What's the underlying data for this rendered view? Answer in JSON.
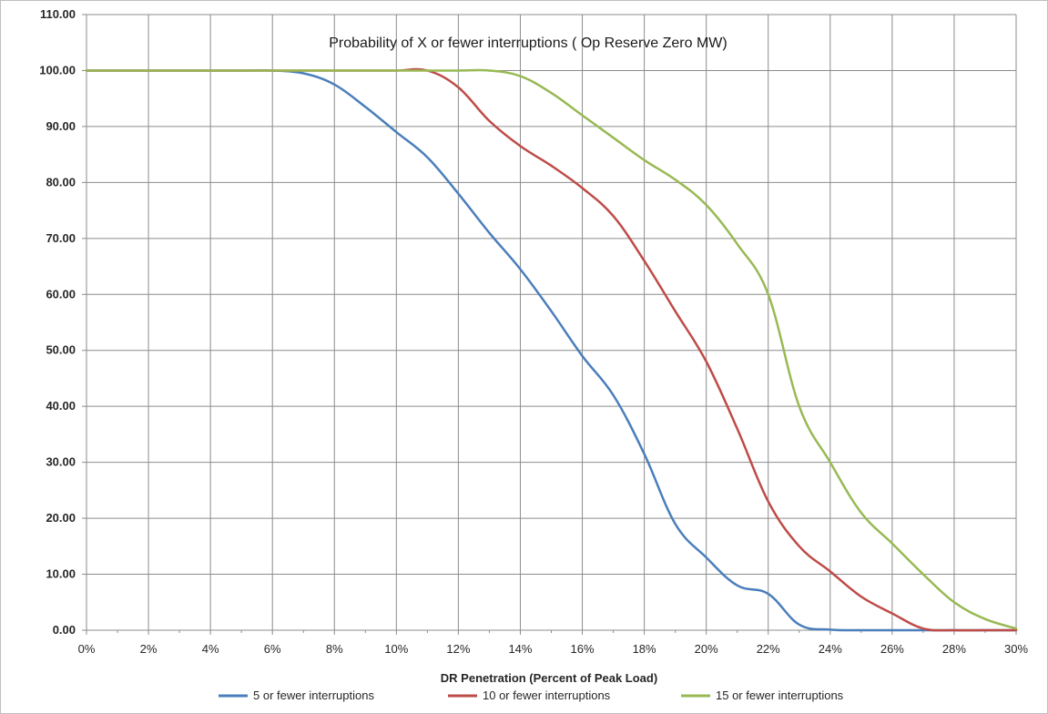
{
  "chart_data": {
    "type": "line",
    "title": "Probability of X or fewer  interruptions ( Op Reserve Zero MW)",
    "xlabel": "DR Penetration (Percent of Peak Load)",
    "ylabel": "",
    "xlim": [
      0,
      30
    ],
    "ylim": [
      0,
      110
    ],
    "grid": true,
    "legend_position": "bottom",
    "x_ticks": [
      "0%",
      "2%",
      "4%",
      "6%",
      "8%",
      "10%",
      "12%",
      "14%",
      "16%",
      "18%",
      "20%",
      "22%",
      "24%",
      "26%",
      "28%",
      "30%"
    ],
    "y_ticks": [
      "0.00",
      "10.00",
      "20.00",
      "30.00",
      "40.00",
      "50.00",
      "60.00",
      "70.00",
      "80.00",
      "90.00",
      "100.00",
      "110.00"
    ],
    "series": [
      {
        "name": "5 or fewer interruptions",
        "color": "#4a7ebb",
        "x": [
          0,
          1,
          2,
          3,
          4,
          5,
          6,
          7,
          8,
          9,
          10,
          11,
          12,
          13,
          14,
          15,
          16,
          17,
          18,
          19,
          20,
          21,
          22,
          23,
          24,
          25,
          26,
          27,
          28,
          29,
          30
        ],
        "y": [
          100,
          100,
          100,
          100,
          100,
          100,
          100,
          99.5,
          97.5,
          93.5,
          89,
          84.5,
          78,
          71,
          64.5,
          57,
          49,
          42,
          31.5,
          19,
          13,
          8,
          6.5,
          1,
          0.1,
          0,
          0,
          0,
          0,
          0,
          0
        ]
      },
      {
        "name": "10 or fewer interruptions",
        "color": "#be4b48",
        "x": [
          0,
          1,
          2,
          3,
          4,
          5,
          6,
          7,
          8,
          9,
          10,
          11,
          12,
          13,
          14,
          15,
          16,
          17,
          18,
          19,
          20,
          21,
          22,
          23,
          24,
          25,
          26,
          27,
          28,
          29,
          30
        ],
        "y": [
          100,
          100,
          100,
          100,
          100,
          100,
          100,
          100,
          100,
          100,
          100,
          100,
          97,
          91,
          86.5,
          83,
          79,
          74,
          66,
          57,
          48,
          36,
          23,
          15,
          10.5,
          6,
          3,
          0.3,
          0,
          0,
          0
        ]
      },
      {
        "name": "15 or fewer interruptions",
        "color": "#98b954",
        "x": [
          0,
          1,
          2,
          3,
          4,
          5,
          6,
          7,
          8,
          9,
          10,
          11,
          12,
          13,
          14,
          15,
          16,
          17,
          18,
          19,
          20,
          21,
          22,
          23,
          24,
          25,
          26,
          27,
          28,
          29,
          30
        ],
        "y": [
          100,
          100,
          100,
          100,
          100,
          100,
          100,
          100,
          100,
          100,
          100,
          100,
          100,
          100,
          99,
          96,
          92,
          88,
          84,
          80.5,
          76,
          69,
          60,
          40,
          30,
          21,
          15.5,
          10,
          5,
          2,
          0.3
        ]
      }
    ]
  }
}
